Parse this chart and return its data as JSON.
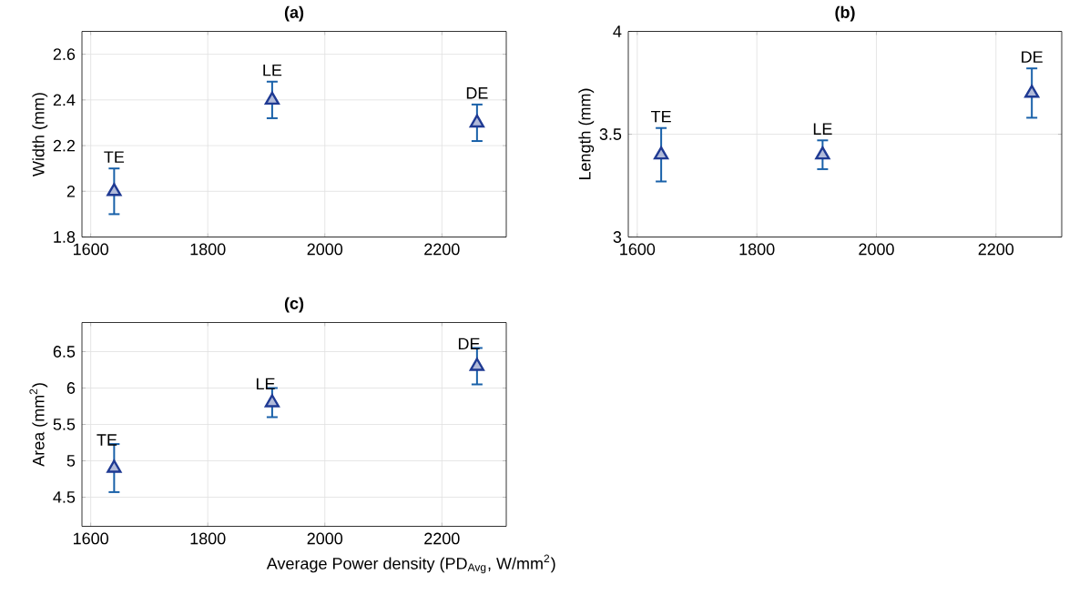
{
  "chart_data": [
    {
      "type": "scatter",
      "title": "(a)",
      "ylabel": "Width (mm)",
      "x": [
        1640,
        1910,
        2260
      ],
      "series": [
        {
          "color": "#1f3a93",
          "values": [
            2.0,
            2.4,
            2.3
          ],
          "errors": [
            0.1,
            0.08,
            0.08
          ]
        }
      ],
      "xlim": [
        1585,
        2310
      ],
      "ylim": [
        1.8,
        2.7
      ],
      "xticks": [
        1600,
        1800,
        2000,
        2200
      ],
      "yticks": [
        1.8,
        2,
        2.2,
        2.4,
        2.6
      ],
      "grid": true,
      "marker": "triangle",
      "annotations": [
        {
          "text": "TE",
          "x": 1640,
          "y": 2.0
        },
        {
          "text": "LE",
          "x": 1910,
          "y": 2.4
        },
        {
          "text": "DE",
          "x": 2260,
          "y": 2.3
        }
      ]
    },
    {
      "type": "scatter",
      "title": "(b)",
      "ylabel": "Length (mm)",
      "x": [
        1640,
        1910,
        2260
      ],
      "series": [
        {
          "color": "#1f3a93",
          "values": [
            3.4,
            3.4,
            3.7
          ],
          "errors": [
            0.13,
            0.07,
            0.12
          ]
        }
      ],
      "xlim": [
        1585,
        2310
      ],
      "ylim": [
        3,
        4
      ],
      "xticks": [
        1600,
        1800,
        2000,
        2200
      ],
      "yticks": [
        3,
        3.5,
        4
      ],
      "grid": true,
      "marker": "triangle",
      "annotations": [
        {
          "text": "TE",
          "x": 1640,
          "y": 3.4
        },
        {
          "text": "LE",
          "x": 1910,
          "y": 3.4
        },
        {
          "text": "DE",
          "x": 2260,
          "y": 3.7
        }
      ]
    },
    {
      "type": "scatter",
      "title": "(c)",
      "ylabel": "Area (mm$^{2}$)",
      "xlabel": "Average Power density (PD$_{Avg}$, W/mm$^{2}$)",
      "x": [
        1640,
        1910,
        2260
      ],
      "series": [
        {
          "color": "#1f3a93",
          "values": [
            4.9,
            5.8,
            6.3
          ],
          "errors": [
            0.33,
            0.2,
            0.25
          ]
        }
      ],
      "xlim": [
        1585,
        2310
      ],
      "ylim": [
        4.1,
        6.9
      ],
      "xticks": [
        1600,
        1800,
        2000,
        2200
      ],
      "yticks": [
        4.5,
        5,
        5.5,
        6,
        6.5
      ],
      "grid": true,
      "marker": "triangle",
      "annotations": [
        {
          "text": "TE",
          "x": 1640,
          "y": 4.9
        },
        {
          "text": "LE",
          "x": 1910,
          "y": 5.8
        },
        {
          "text": "DE",
          "x": 2260,
          "y": 6.3
        }
      ]
    }
  ]
}
